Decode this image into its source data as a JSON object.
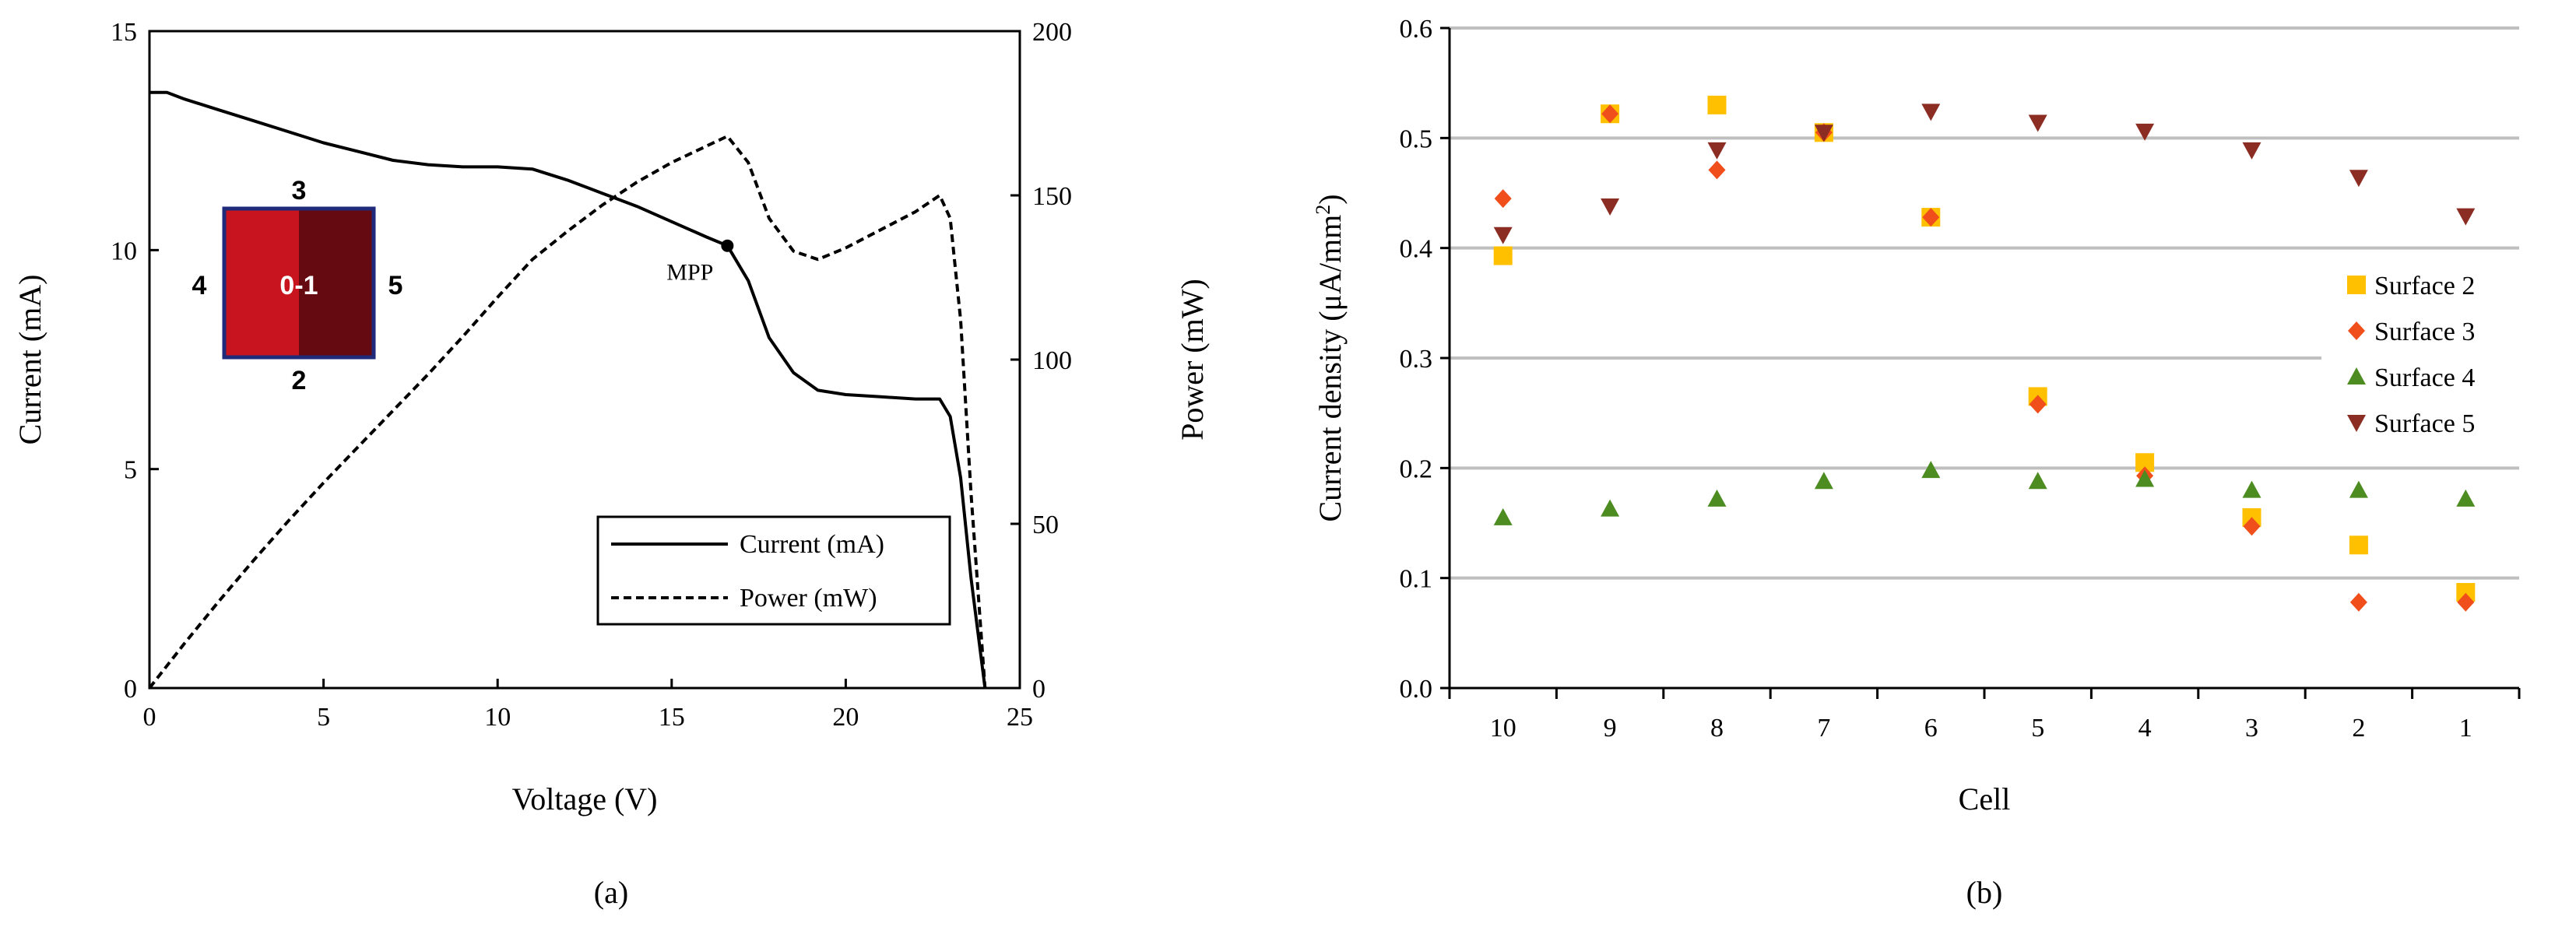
{
  "chart_data": [
    {
      "type": "line",
      "caption": "(a)",
      "xlabel": "Voltage (V)",
      "ylabel": "Current (mA)",
      "y2label": "Power (mW)",
      "xlim": [
        0,
        25
      ],
      "ylim": [
        0,
        15
      ],
      "y2lim": [
        0,
        200
      ],
      "xticks": [
        "0",
        "5",
        "10",
        "15",
        "20",
        "25"
      ],
      "yticks": [
        "0",
        "5",
        "10",
        "15"
      ],
      "y2ticks": [
        "0",
        "50",
        "100",
        "150",
        "200"
      ],
      "legend_position": "bottom-right",
      "series": [
        {
          "name": "Current (mA)",
          "axis": "left",
          "style": "solid",
          "x": [
            0,
            0.5,
            1,
            2,
            3,
            4,
            5,
            6,
            7,
            8,
            9,
            10,
            11,
            12,
            13,
            14,
            15,
            16,
            16.6,
            17.2,
            17.8,
            18.5,
            19.2,
            20,
            21,
            22,
            22.7,
            23,
            23.3,
            23.6,
            24
          ],
          "y": [
            13.6,
            13.6,
            13.45,
            13.2,
            12.95,
            12.7,
            12.45,
            12.25,
            12.05,
            11.95,
            11.9,
            11.9,
            11.85,
            11.6,
            11.3,
            11.0,
            10.65,
            10.3,
            10.1,
            9.3,
            8.0,
            7.2,
            6.8,
            6.7,
            6.65,
            6.6,
            6.6,
            6.2,
            4.8,
            2.5,
            0
          ]
        },
        {
          "name": "Power (mW)",
          "axis": "right",
          "style": "dashed",
          "x": [
            0,
            1,
            2,
            3,
            4,
            5,
            6,
            7,
            8,
            9,
            10,
            11,
            12,
            13,
            14,
            15,
            16,
            16.6,
            17.2,
            17.8,
            18.5,
            19.2,
            20,
            21,
            22,
            22.7,
            23,
            23.3,
            23.6,
            24
          ],
          "y": [
            0,
            13.5,
            26.5,
            39,
            51,
            62.5,
            73.5,
            84.5,
            95.5,
            107,
            119,
            130.5,
            139,
            147,
            154,
            160,
            165,
            168,
            160,
            143,
            133,
            130.5,
            134,
            139.5,
            145,
            150,
            143,
            112,
            59,
            0
          ]
        }
      ],
      "annotations": [
        {
          "label": "MPP",
          "x": 16.6,
          "y": 10.1
        }
      ],
      "inset": {
        "center_label": "0-1",
        "top_label": "3",
        "bottom_label": "2",
        "left_label": "4",
        "right_label": "5",
        "left_color": "#c8141e",
        "right_color": "#640a10",
        "border_color": "#1f2a7a"
      }
    },
    {
      "type": "scatter",
      "caption": "(b)",
      "xlabel": "Cell",
      "ylabel_main": "Current density (μA/mm",
      "ylabel_sup": "2",
      "ylabel_tail": ")",
      "ylim": [
        0,
        0.6
      ],
      "grid": true,
      "legend_position": "right",
      "categories": [
        "10",
        "9",
        "8",
        "7",
        "6",
        "5",
        "4",
        "3",
        "2",
        "1"
      ],
      "yticks": [
        "0.0",
        "0.1",
        "0.2",
        "0.3",
        "0.4",
        "0.5",
        "0.6"
      ],
      "series": [
        {
          "name": "Surface 2",
          "marker": "square",
          "color": "#ffc000",
          "values": [
            0.393,
            0.522,
            0.53,
            0.505,
            0.428,
            0.265,
            0.205,
            0.155,
            0.13,
            0.087
          ]
        },
        {
          "name": "Surface 3",
          "marker": "diamond",
          "color": "#f04e1a",
          "values": [
            0.445,
            0.522,
            0.471,
            0.505,
            0.428,
            0.258,
            0.193,
            0.147,
            0.078,
            0.078
          ]
        },
        {
          "name": "Surface 4",
          "marker": "triangle-up",
          "color": "#4d8c21",
          "values": [
            0.155,
            0.163,
            0.172,
            0.188,
            0.198,
            0.188,
            0.19,
            0.18,
            0.18,
            0.172
          ]
        },
        {
          "name": "Surface 5",
          "marker": "triangle-down",
          "color": "#8b2d23",
          "values": [
            0.412,
            0.438,
            0.489,
            0.505,
            0.524,
            0.514,
            0.506,
            0.489,
            0.464,
            0.429
          ]
        }
      ]
    }
  ]
}
